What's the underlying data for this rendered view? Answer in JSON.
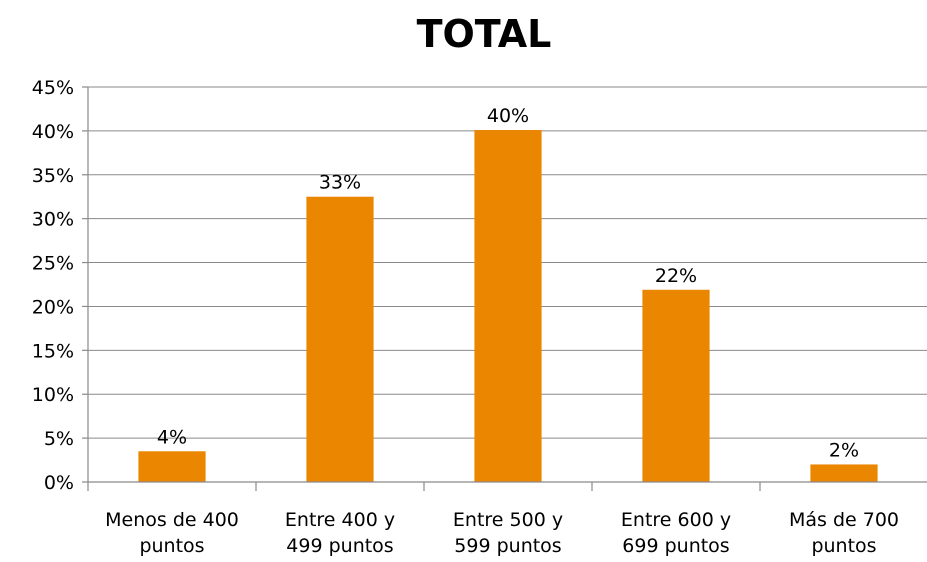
{
  "chart_data": {
    "type": "bar",
    "title": "TOTAL",
    "categories": [
      [
        "Menos de 400",
        "puntos"
      ],
      [
        "Entre 400 y",
        "499 puntos"
      ],
      [
        "Entre 500 y",
        "599 puntos"
      ],
      [
        "Entre 600 y",
        "699 puntos"
      ],
      [
        "Más de 700",
        "puntos"
      ]
    ],
    "values": [
      3.5,
      32.5,
      40.1,
      21.9,
      2.0
    ],
    "data_labels": [
      "4%",
      "33%",
      "40%",
      "22%",
      "2%"
    ],
    "ylim": [
      0,
      45
    ],
    "yticks": [
      0,
      5,
      10,
      15,
      20,
      25,
      30,
      35,
      40,
      45
    ],
    "ytick_labels": [
      "0%",
      "5%",
      "10%",
      "15%",
      "20%",
      "25%",
      "30%",
      "35%",
      "40%",
      "45%"
    ],
    "grid": true,
    "legend": "none",
    "bar_color": "#EA8600"
  }
}
